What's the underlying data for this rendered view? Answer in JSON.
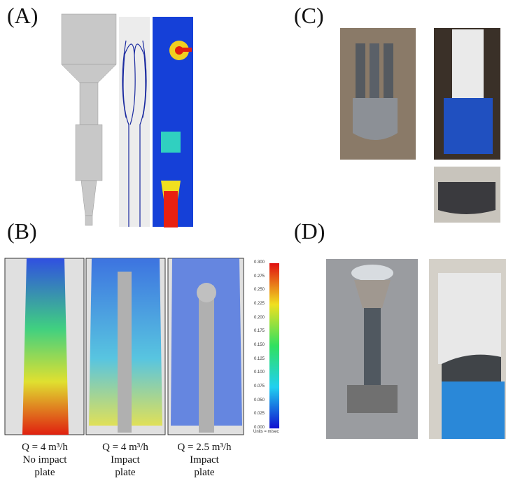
{
  "panels": {
    "a": {
      "label": "(A)"
    },
    "b": {
      "label": "(B)",
      "colorbar": {
        "ticks": [
          "0.300",
          "0.275",
          "0.250",
          "0.225",
          "0.200",
          "0.175",
          "0.150",
          "0.125",
          "0.100",
          "0.075",
          "0.050",
          "0.025",
          "0.000"
        ],
        "units": "Units = m/sec"
      },
      "cases": [
        {
          "flow": "Q = 4 m³/h",
          "description": "No impact plate"
        },
        {
          "flow": "Q = 4 m³/h",
          "description": "Impact plate"
        },
        {
          "flow": "Q = 2.5 m³/h",
          "description": "Impact plate"
        }
      ]
    },
    "c": {
      "label": "(C)"
    },
    "d": {
      "label": "(D)"
    }
  }
}
